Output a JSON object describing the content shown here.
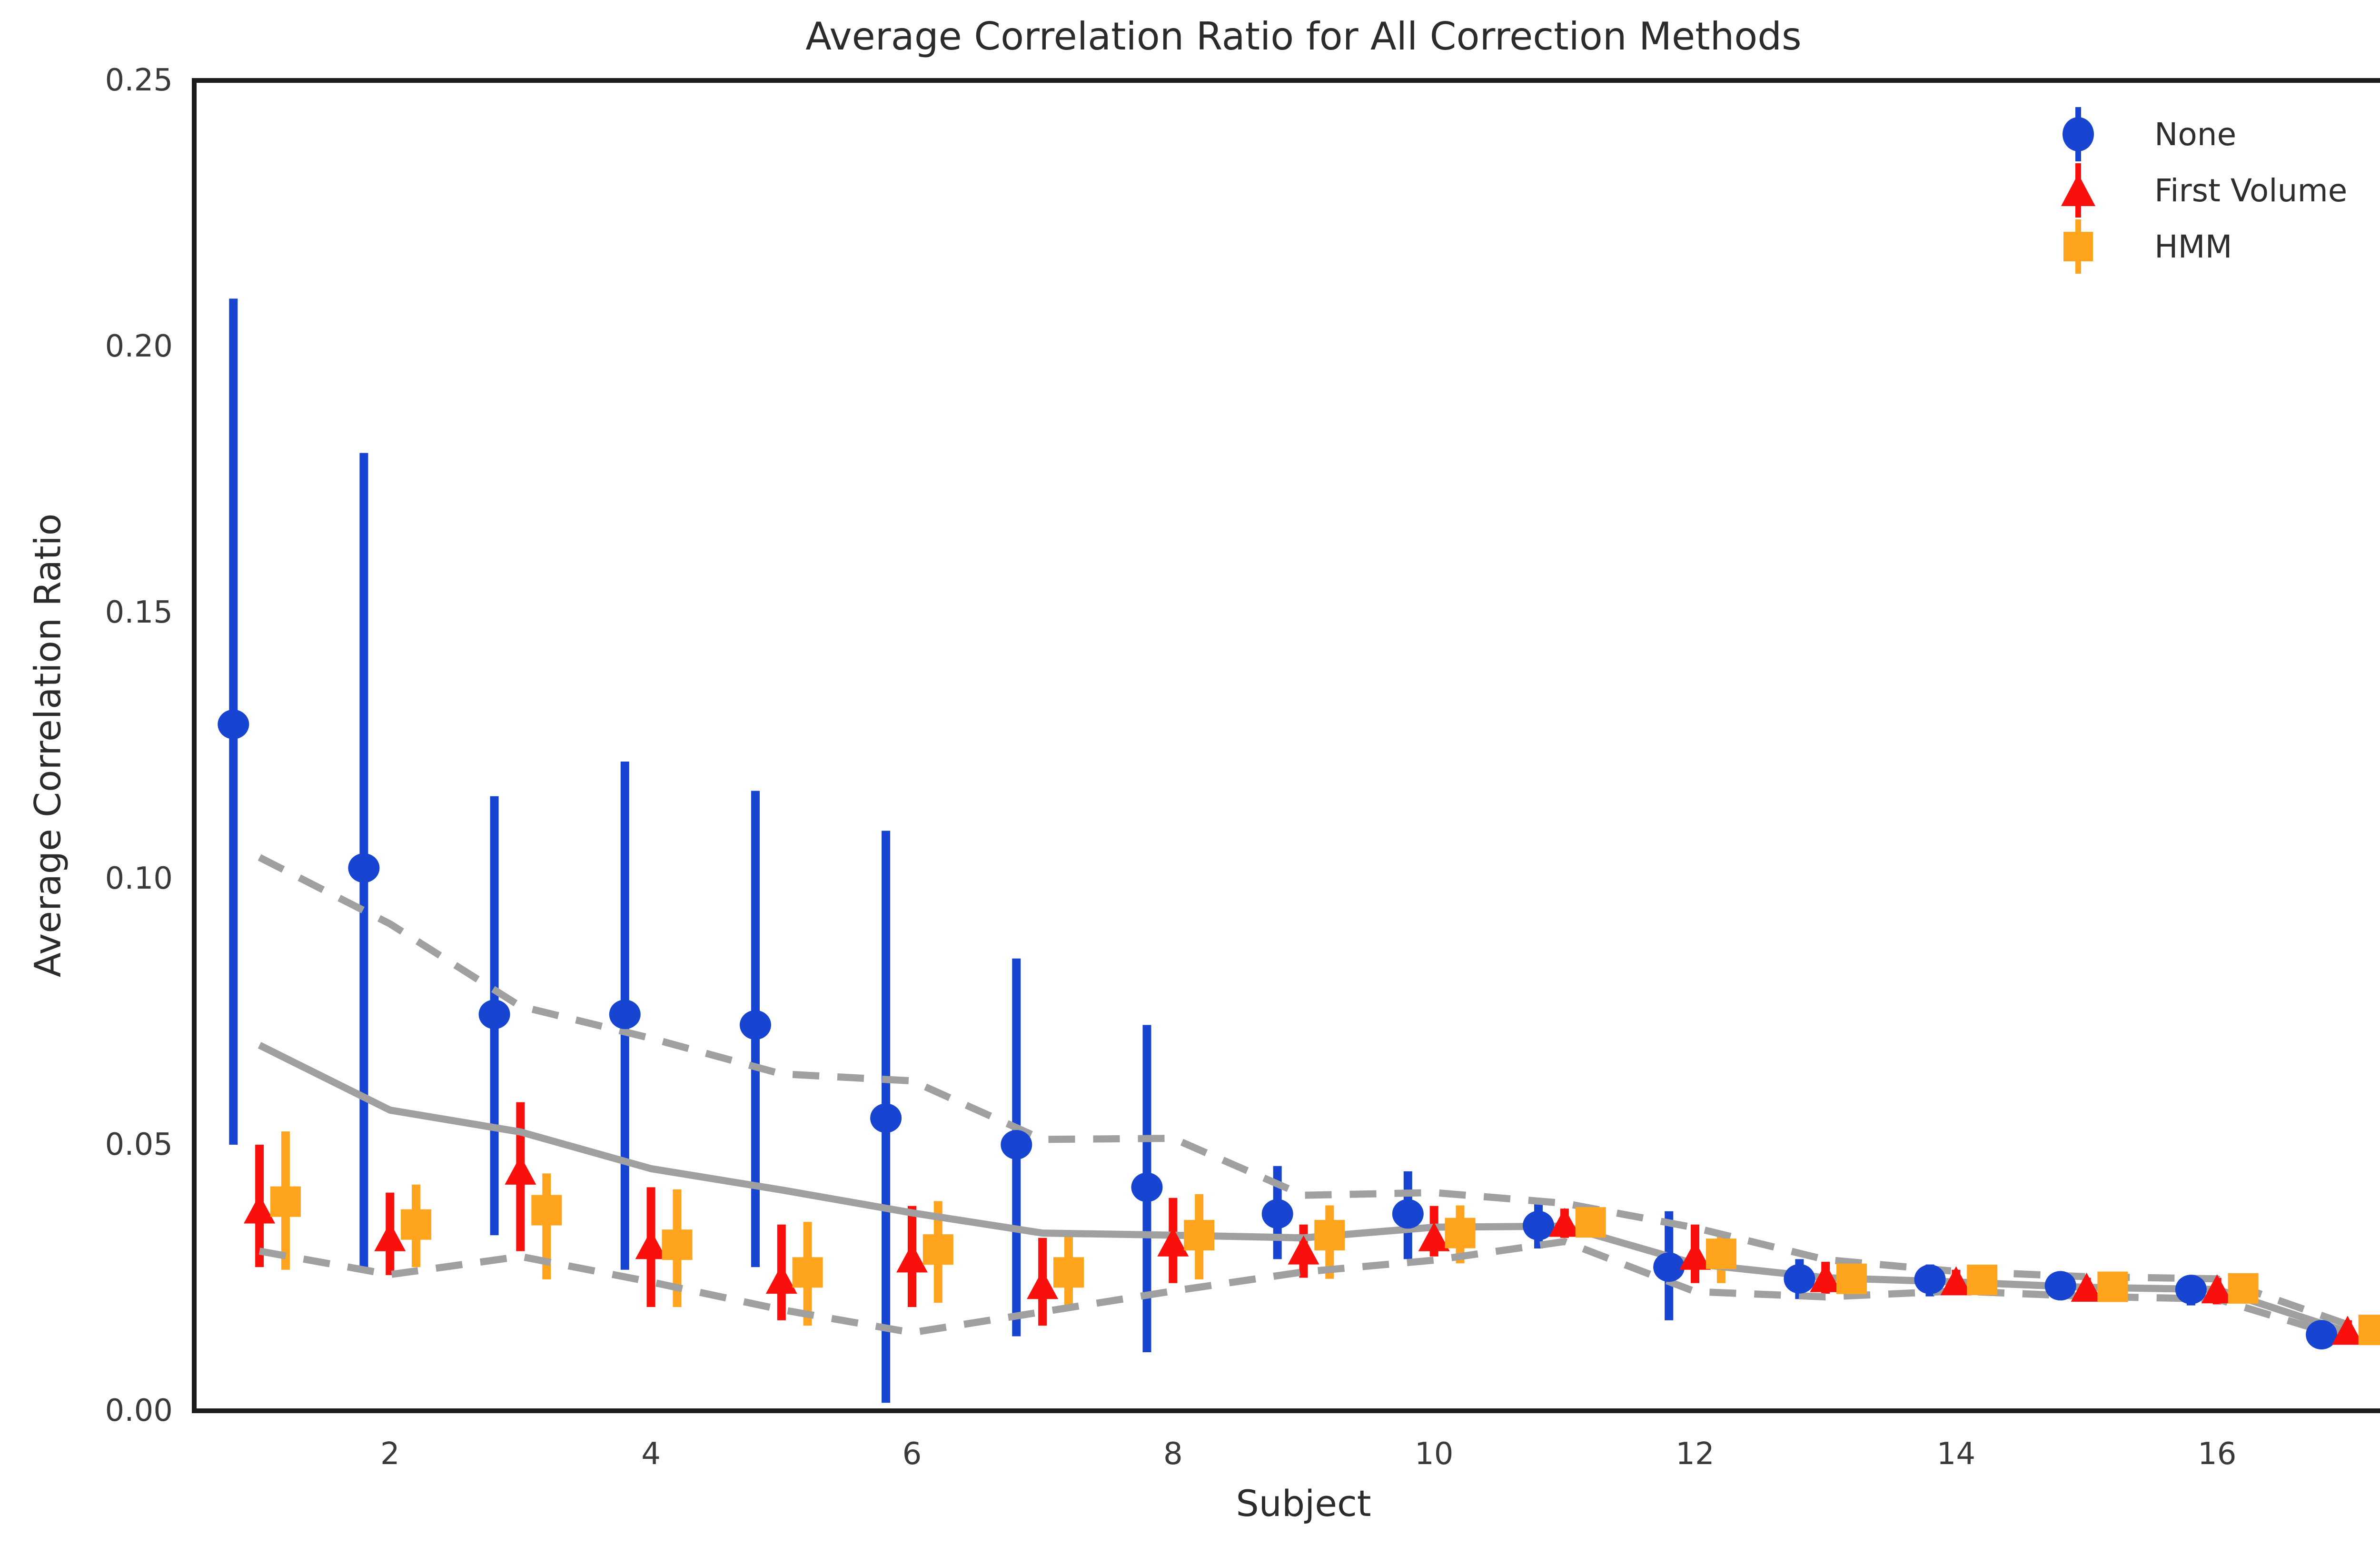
{
  "chart_data": {
    "type": "scatter",
    "title": "Average Correlation Ratio for All Correction Methods",
    "xlabel": "Subject",
    "ylabel": "Average Correlation Ratio",
    "xlim": [
      0.5,
      17.5
    ],
    "ylim": [
      0,
      0.25
    ],
    "x_ticks": [
      2,
      4,
      6,
      8,
      10,
      12,
      14,
      16
    ],
    "y_ticks": [
      0.0,
      0.05,
      0.1,
      0.15,
      0.2,
      0.25
    ],
    "grid": false,
    "legend_position": "upper right",
    "frame_color": "#1c1c1c",
    "x": [
      1,
      2,
      3,
      4,
      5,
      6,
      7,
      8,
      9,
      10,
      11,
      12,
      13,
      14,
      15,
      16,
      17
    ],
    "series": [
      {
        "name": "None",
        "marker": "circle",
        "color": "#1745d1",
        "x_offset": -0.2,
        "values": [
          0.129,
          0.102,
          0.0745,
          0.0745,
          0.0725,
          0.055,
          0.05,
          0.042,
          0.037,
          0.037,
          0.0348,
          0.027,
          0.0248,
          0.0247,
          0.0235,
          0.0228,
          0.0143
        ],
        "err_lo": [
          0.05,
          0.0265,
          0.033,
          0.0265,
          0.027,
          0.0015,
          0.014,
          0.011,
          0.0285,
          0.0285,
          0.0305,
          0.017,
          0.021,
          0.0215,
          0.021,
          0.0198,
          0.0125
        ],
        "err_hi": [
          0.209,
          0.18,
          0.1155,
          0.122,
          0.1165,
          0.109,
          0.085,
          0.0725,
          0.046,
          0.045,
          0.039,
          0.0375,
          0.0285,
          0.0275,
          0.026,
          0.025,
          0.016
        ]
      },
      {
        "name": "First Volume",
        "marker": "triangle",
        "color": "#f90f0b",
        "x_offset": 0,
        "values": [
          0.0377,
          0.0325,
          0.045,
          0.031,
          0.0245,
          0.0285,
          0.0235,
          0.0315,
          0.03,
          0.0325,
          0.0352,
          0.029,
          0.0248,
          0.0242,
          0.023,
          0.0227,
          0.0149
        ],
        "err_lo": [
          0.027,
          0.0255,
          0.03,
          0.0195,
          0.017,
          0.0195,
          0.016,
          0.024,
          0.025,
          0.029,
          0.0325,
          0.024,
          0.022,
          0.022,
          0.021,
          0.02,
          0.013
        ],
        "err_hi": [
          0.05,
          0.041,
          0.058,
          0.042,
          0.035,
          0.0385,
          0.0325,
          0.04,
          0.035,
          0.0385,
          0.038,
          0.035,
          0.028,
          0.0265,
          0.025,
          0.025,
          0.017
        ]
      },
      {
        "name": "HMM",
        "marker": "square",
        "color": "#ffa41c",
        "x_offset": 0.2,
        "values": [
          0.0393,
          0.035,
          0.0377,
          0.0312,
          0.026,
          0.0303,
          0.026,
          0.033,
          0.033,
          0.0334,
          0.0354,
          0.0295,
          0.0248,
          0.0246,
          0.0233,
          0.023,
          0.0152
        ],
        "err_lo": [
          0.0265,
          0.027,
          0.0247,
          0.0195,
          0.016,
          0.0203,
          0.0195,
          0.0247,
          0.0248,
          0.0277,
          0.0332,
          0.024,
          0.022,
          0.022,
          0.021,
          0.0205,
          0.013
        ],
        "err_hi": [
          0.0525,
          0.0425,
          0.0446,
          0.0416,
          0.0355,
          0.0394,
          0.033,
          0.0407,
          0.0386,
          0.0386,
          0.038,
          0.0333,
          0.028,
          0.027,
          0.0255,
          0.0255,
          0.0175
        ]
      }
    ],
    "reference_lines": [
      {
        "name": "mean",
        "style": "solid",
        "color": "#a0a0a0",
        "values": [
          0.0687,
          0.0565,
          0.0524,
          0.0455,
          0.0415,
          0.0372,
          0.0334,
          0.033,
          0.0325,
          0.0345,
          0.0347,
          0.0276,
          0.025,
          0.0242,
          0.0232,
          0.0228,
          0.0148
        ]
      },
      {
        "name": "upper-band",
        "style": "dashed",
        "color": "#a0a0a0",
        "values": [
          0.104,
          0.0915,
          0.076,
          0.07,
          0.0633,
          0.062,
          0.051,
          0.0512,
          0.0405,
          0.041,
          0.039,
          0.0344,
          0.0284,
          0.0262,
          0.0252,
          0.0248,
          0.0162
        ]
      },
      {
        "name": "lower-band",
        "style": "dashed",
        "color": "#a0a0a0",
        "values": [
          0.03,
          0.0256,
          0.029,
          0.0242,
          0.019,
          0.0147,
          0.0186,
          0.0225,
          0.0261,
          0.0283,
          0.0318,
          0.0224,
          0.0214,
          0.0225,
          0.0215,
          0.021,
          0.0136
        ]
      }
    ]
  }
}
